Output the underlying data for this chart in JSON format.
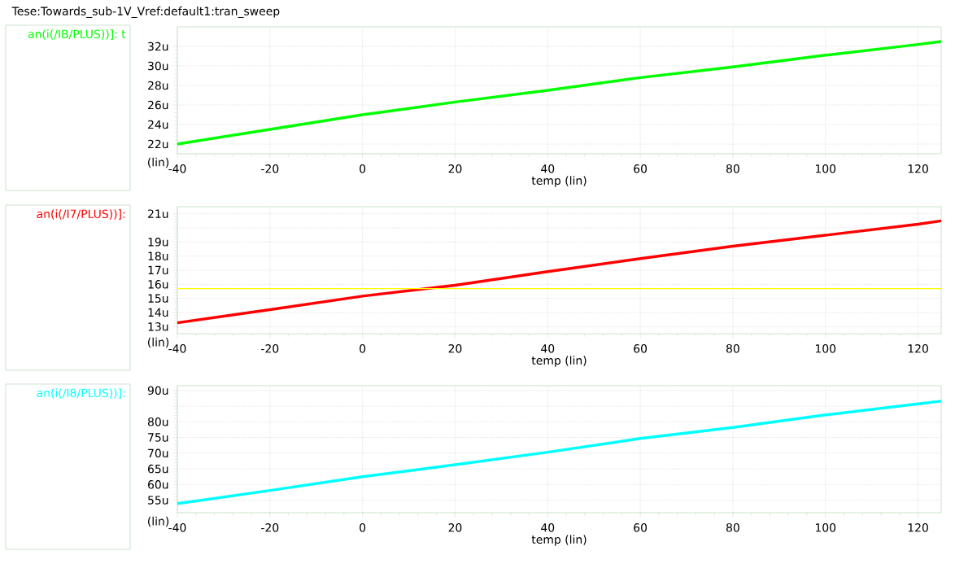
{
  "chart_data": [
    {
      "type": "line",
      "title": "Tese:Towards_sub-1V_Vref:default1:tran_sweep",
      "xlabel": "temp (lin)",
      "ylabel": "(lin)",
      "legend": "left",
      "grid": true,
      "x": [
        -40,
        -20,
        0,
        20,
        40,
        60,
        80,
        100,
        120,
        125
      ],
      "series": [
        {
          "name": "an(i(/IB/PLUS))]: t",
          "color": "#00ff00",
          "values": [
            22.0,
            23.5,
            25.0,
            26.3,
            27.5,
            28.8,
            29.9,
            31.1,
            32.2,
            32.5
          ]
        }
      ],
      "xlim": [
        -40,
        125
      ],
      "xticks": [
        -40,
        -20,
        0,
        20,
        40,
        60,
        80,
        100,
        120
      ],
      "ylim": [
        21,
        34
      ],
      "yticks": [
        {
          "value": 22,
          "label": "22u"
        },
        {
          "value": 24,
          "label": "24u"
        },
        {
          "value": 26,
          "label": "26u"
        },
        {
          "value": 28,
          "label": "28u"
        },
        {
          "value": 30,
          "label": "30u"
        },
        {
          "value": 32,
          "label": "32u"
        }
      ]
    },
    {
      "type": "line",
      "xlabel": "temp (lin)",
      "ylabel": "(lin)",
      "legend": "left",
      "grid": true,
      "x": [
        -40,
        -20,
        0,
        20,
        40,
        60,
        80,
        100,
        120,
        125
      ],
      "series": [
        {
          "name": "an(i(/I7/PLUS))]:",
          "color": "#ff0000",
          "values": [
            13.27,
            14.2,
            15.16,
            15.93,
            16.9,
            17.82,
            18.7,
            19.48,
            20.26,
            20.5
          ]
        }
      ],
      "xlim": [
        -40,
        125
      ],
      "xticks": [
        -40,
        -20,
        0,
        20,
        40,
        60,
        80,
        100,
        120
      ],
      "ylim": [
        12.5,
        21.5
      ],
      "yticks": [
        {
          "value": 13,
          "label": "13u"
        },
        {
          "value": 14,
          "label": "14u"
        },
        {
          "value": 15,
          "label": "15u"
        },
        {
          "value": 16,
          "label": "16u"
        },
        {
          "value": 17,
          "label": "17u"
        },
        {
          "value": 18,
          "label": "18u"
        },
        {
          "value": 19,
          "label": "19u"
        },
        {
          "value": 20,
          "label": null
        },
        {
          "value": 21,
          "label": "21u"
        }
      ],
      "ref_lines": [
        {
          "axis": "y",
          "value": 15.7,
          "color": "#ffff00"
        }
      ]
    },
    {
      "type": "line",
      "xlabel": "temp (lin)",
      "ylabel": "(lin)",
      "legend": "left",
      "grid": true,
      "x": [
        -40,
        -20,
        0,
        20,
        40,
        60,
        80,
        100,
        120,
        125
      ],
      "series": [
        {
          "name": "an(i(/I8/PLUS))]:",
          "color": "#00ffff",
          "values": [
            53.9,
            58.1,
            62.5,
            66.3,
            70.3,
            74.7,
            78.2,
            82.2,
            85.7,
            86.6
          ]
        }
      ],
      "xlim": [
        -40,
        125
      ],
      "xticks": [
        -40,
        -20,
        0,
        20,
        40,
        60,
        80,
        100,
        120
      ],
      "ylim": [
        51,
        91.5
      ],
      "yticks": [
        {
          "value": 55,
          "label": "55u"
        },
        {
          "value": 60,
          "label": "60u"
        },
        {
          "value": 65,
          "label": "65u"
        },
        {
          "value": 70,
          "label": "70u"
        },
        {
          "value": 75,
          "label": "75u"
        },
        {
          "value": 80,
          "label": "80u"
        },
        {
          "value": 85,
          "label": null
        },
        {
          "value": 90,
          "label": "90u"
        }
      ]
    }
  ]
}
